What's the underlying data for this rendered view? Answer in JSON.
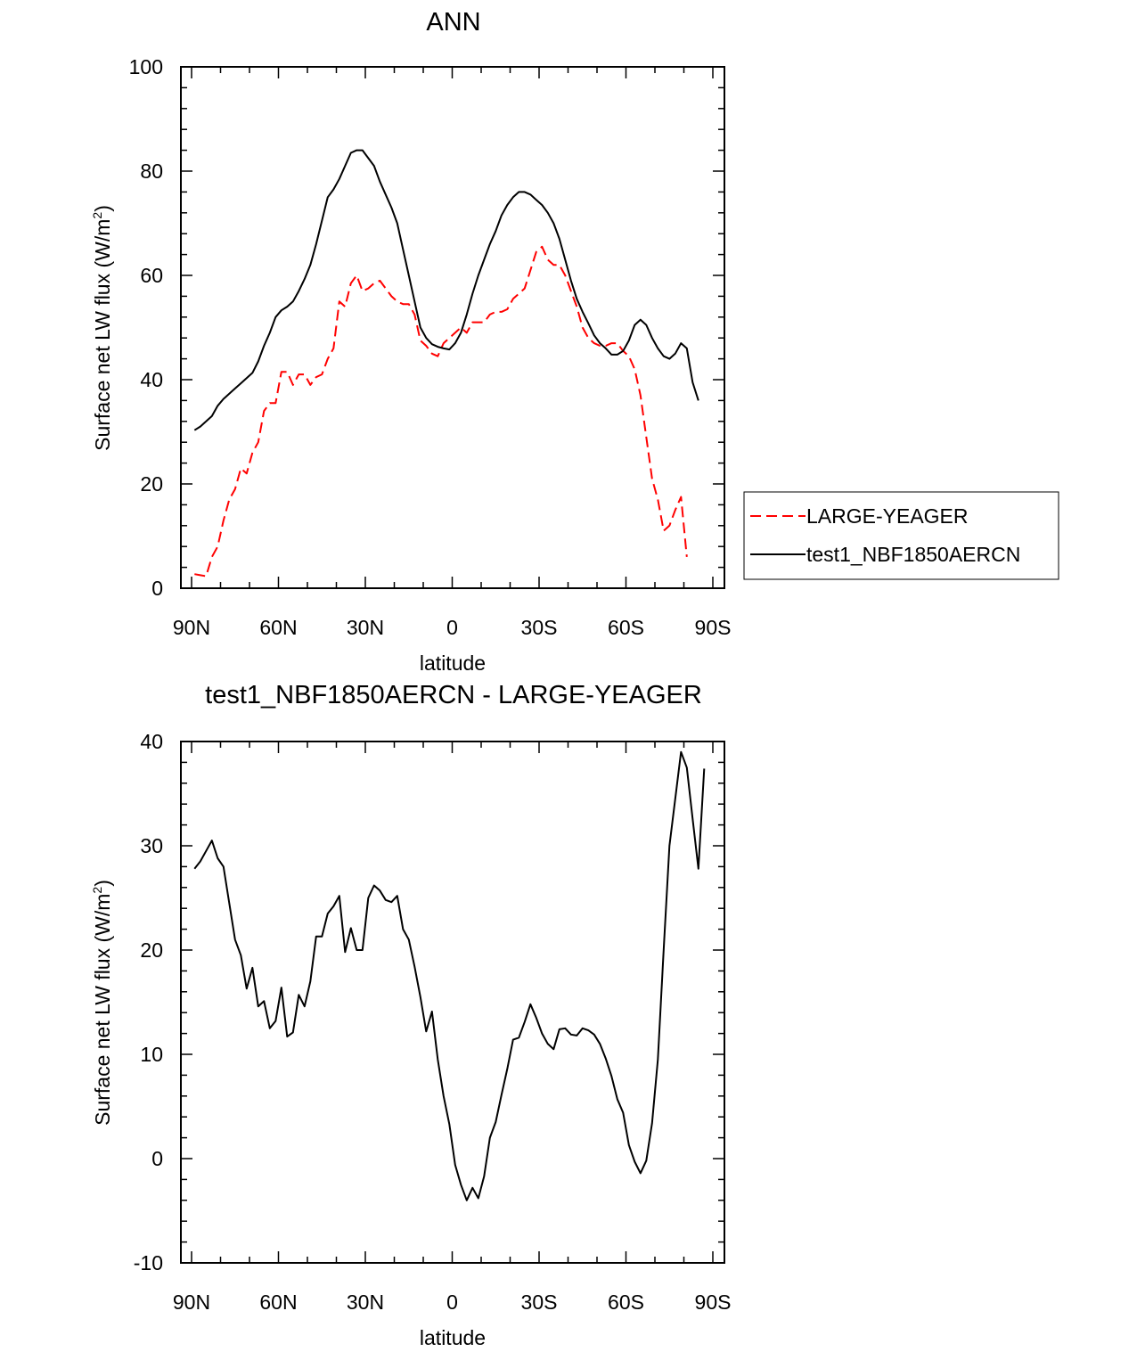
{
  "chart_data": [
    {
      "type": "line",
      "title": "ANN",
      "xlabel": "latitude",
      "ylabel": "Surface net LW flux (W/m",
      "ylabel_sup": "2",
      "ylabel_end": ")",
      "xlim": [
        90,
        -90
      ],
      "ylim": [
        0,
        100
      ],
      "x_ticks": [
        {
          "value": 90,
          "label": "90N"
        },
        {
          "value": 60,
          "label": "60N"
        },
        {
          "value": 30,
          "label": "30N"
        },
        {
          "value": 0,
          "label": "0"
        },
        {
          "value": -30,
          "label": "30S"
        },
        {
          "value": -60,
          "label": "60S"
        },
        {
          "value": -90,
          "label": "90S"
        }
      ],
      "y_ticks": [
        0,
        20,
        40,
        60,
        80,
        100
      ],
      "legend": "right",
      "series": [
        {
          "name": "LARGE-YEAGER",
          "color": "#ff0000",
          "dash": "dashed",
          "points": [
            [
              89,
              2.7
            ],
            [
              87,
              2.5
            ],
            [
              85,
              2.3
            ],
            [
              83,
              6
            ],
            [
              81,
              8
            ],
            [
              79,
              13
            ],
            [
              77,
              17
            ],
            [
              75,
              19
            ],
            [
              73,
              23
            ],
            [
              71,
              22
            ],
            [
              69,
              26
            ],
            [
              67,
              28
            ],
            [
              65,
              34
            ],
            [
              63,
              35.5
            ],
            [
              61,
              35.5
            ],
            [
              59,
              41.5
            ],
            [
              57,
              41.5
            ],
            [
              55,
              39
            ],
            [
              53,
              41
            ],
            [
              51,
              41
            ],
            [
              49,
              39
            ],
            [
              47,
              40.5
            ],
            [
              45,
              41
            ],
            [
              43,
              44
            ],
            [
              41,
              46
            ],
            [
              39,
              55
            ],
            [
              37,
              54
            ],
            [
              35,
              58.5
            ],
            [
              33,
              60
            ],
            [
              31,
              57
            ],
            [
              29,
              57.5
            ],
            [
              27,
              58.5
            ],
            [
              25,
              59
            ],
            [
              23,
              57.5
            ],
            [
              21,
              56
            ],
            [
              19,
              55
            ],
            [
              17,
              54.5
            ],
            [
              15,
              54.5
            ],
            [
              13,
              52.5
            ],
            [
              11,
              47.5
            ],
            [
              9,
              46.5
            ],
            [
              7,
              45
            ],
            [
              5,
              44.5
            ],
            [
              3,
              47
            ],
            [
              1,
              48
            ],
            [
              -1,
              49
            ],
            [
              -3,
              50
            ],
            [
              -5,
              49
            ],
            [
              -7,
              51
            ],
            [
              -9,
              51
            ],
            [
              -11,
              51
            ],
            [
              -13,
              52.5
            ],
            [
              -15,
              53
            ],
            [
              -17,
              53
            ],
            [
              -19,
              53.5
            ],
            [
              -21,
              55.5
            ],
            [
              -23,
              56.5
            ],
            [
              -25,
              57.5
            ],
            [
              -27,
              61
            ],
            [
              -29,
              64.5
            ],
            [
              -31,
              65.5
            ],
            [
              -33,
              63
            ],
            [
              -35,
              62
            ],
            [
              -37,
              62
            ],
            [
              -39,
              60
            ],
            [
              -41,
              57
            ],
            [
              -43,
              54
            ],
            [
              -45,
              50
            ],
            [
              -47,
              48
            ],
            [
              -49,
              47
            ],
            [
              -51,
              46.5
            ],
            [
              -53,
              46.5
            ],
            [
              -55,
              47
            ],
            [
              -57,
              47
            ],
            [
              -59,
              45.5
            ],
            [
              -61,
              44.5
            ],
            [
              -63,
              42
            ],
            [
              -65,
              37
            ],
            [
              -67,
              29
            ],
            [
              -69,
              21
            ],
            [
              -71,
              17
            ],
            [
              -73,
              11
            ],
            [
              -75,
              12
            ],
            [
              -77,
              15
            ],
            [
              -79,
              17.5
            ],
            [
              -81,
              6
            ]
          ]
        },
        {
          "name": "test1_NBF1850AERCN",
          "color": "#000000",
          "dash": "solid",
          "points": [
            [
              89,
              30.3
            ],
            [
              87,
              31
            ],
            [
              85,
              32
            ],
            [
              83,
              33
            ],
            [
              81,
              35
            ],
            [
              79,
              36.3
            ],
            [
              77,
              37.3
            ],
            [
              75,
              38.3
            ],
            [
              73,
              39.3
            ],
            [
              71,
              40.3
            ],
            [
              69,
              41.3
            ],
            [
              67,
              43.5
            ],
            [
              65,
              46.5
            ],
            [
              63,
              49
            ],
            [
              61,
              52
            ],
            [
              59,
              53.3
            ],
            [
              57,
              54
            ],
            [
              55,
              55
            ],
            [
              53,
              57
            ],
            [
              51,
              59.3
            ],
            [
              49,
              62
            ],
            [
              47,
              66
            ],
            [
              45,
              70.5
            ],
            [
              43,
              75
            ],
            [
              41,
              76.5
            ],
            [
              39,
              78.5
            ],
            [
              37,
              81
            ],
            [
              35,
              83.5
            ],
            [
              33,
              84
            ],
            [
              31,
              84
            ],
            [
              29,
              82.5
            ],
            [
              27,
              81
            ],
            [
              25,
              78
            ],
            [
              23,
              75.5
            ],
            [
              21,
              73
            ],
            [
              19,
              70
            ],
            [
              17,
              65
            ],
            [
              15,
              60
            ],
            [
              13,
              55
            ],
            [
              11,
              50
            ],
            [
              9,
              48
            ],
            [
              7,
              46.8
            ],
            [
              5,
              46.3
            ],
            [
              3,
              46
            ],
            [
              1,
              45.8
            ],
            [
              -1,
              47
            ],
            [
              -3,
              49
            ],
            [
              -5,
              52.5
            ],
            [
              -7,
              56.5
            ],
            [
              -9,
              60
            ],
            [
              -11,
              63
            ],
            [
              -13,
              66
            ],
            [
              -15,
              68.5
            ],
            [
              -17,
              71.5
            ],
            [
              -19,
              73.5
            ],
            [
              -21,
              75
            ],
            [
              -23,
              76
            ],
            [
              -25,
              76
            ],
            [
              -27,
              75.5
            ],
            [
              -29,
              74.5
            ],
            [
              -31,
              73.5
            ],
            [
              -33,
              72
            ],
            [
              -35,
              70
            ],
            [
              -37,
              67
            ],
            [
              -39,
              63
            ],
            [
              -41,
              59
            ],
            [
              -43,
              55.5
            ],
            [
              -45,
              53
            ],
            [
              -47,
              50.8
            ],
            [
              -49,
              48.5
            ],
            [
              -51,
              47
            ],
            [
              -53,
              46
            ],
            [
              -55,
              44.8
            ],
            [
              -57,
              44.8
            ],
            [
              -59,
              45.5
            ],
            [
              -61,
              47.5
            ],
            [
              -63,
              50.5
            ],
            [
              -65,
              51.5
            ],
            [
              -67,
              50.5
            ],
            [
              -69,
              48
            ],
            [
              -71,
              46
            ],
            [
              -73,
              44.5
            ],
            [
              -75,
              44
            ],
            [
              -77,
              45
            ],
            [
              -79,
              47
            ],
            [
              -81,
              46
            ],
            [
              -83,
              39.5
            ],
            [
              -85,
              36
            ]
          ]
        }
      ]
    },
    {
      "type": "line",
      "title": "test1_NBF1850AERCN - LARGE-YEAGER",
      "xlabel": "latitude",
      "ylabel": "Surface net LW flux (W/m",
      "ylabel_sup": "2",
      "ylabel_end": ")",
      "xlim": [
        90,
        -90
      ],
      "ylim": [
        -10,
        40
      ],
      "x_ticks": [
        {
          "value": 90,
          "label": "90N"
        },
        {
          "value": 60,
          "label": "60N"
        },
        {
          "value": 30,
          "label": "30N"
        },
        {
          "value": 0,
          "label": "0"
        },
        {
          "value": -30,
          "label": "30S"
        },
        {
          "value": -60,
          "label": "60S"
        },
        {
          "value": -90,
          "label": "90S"
        }
      ],
      "y_ticks": [
        -10,
        0,
        10,
        20,
        30,
        40
      ],
      "series": [
        {
          "color": "#000000",
          "dash": "solid",
          "points": [
            [
              89,
              27.8
            ],
            [
              87,
              28.5
            ],
            [
              85,
              29.5
            ],
            [
              83,
              30.5
            ],
            [
              81,
              28.8
            ],
            [
              79,
              28
            ],
            [
              77,
              24.5
            ],
            [
              75,
              21
            ],
            [
              73,
              19.5
            ],
            [
              71,
              16.3
            ],
            [
              69,
              18.3
            ],
            [
              67,
              14.6
            ],
            [
              65,
              15.1
            ],
            [
              63,
              12.5
            ],
            [
              61,
              13.2
            ],
            [
              59,
              16.4
            ],
            [
              57,
              11.7
            ],
            [
              55,
              12.1
            ],
            [
              53,
              15.7
            ],
            [
              51,
              14.6
            ],
            [
              49,
              17
            ],
            [
              47,
              21.3
            ],
            [
              45,
              21.3
            ],
            [
              43,
              23.5
            ],
            [
              41,
              24.2
            ],
            [
              39,
              25.2
            ],
            [
              37,
              19.8
            ],
            [
              35,
              22.1
            ],
            [
              33,
              20
            ],
            [
              31,
              20
            ],
            [
              29,
              25
            ],
            [
              27,
              26.2
            ],
            [
              25,
              25.7
            ],
            [
              23,
              24.8
            ],
            [
              21,
              24.6
            ],
            [
              19,
              25.2
            ],
            [
              17,
              22
            ],
            [
              15,
              21
            ],
            [
              13,
              18.4
            ],
            [
              11,
              15.5
            ],
            [
              9,
              12.2
            ],
            [
              7,
              14.1
            ],
            [
              5,
              9.5
            ],
            [
              3,
              6
            ],
            [
              1,
              3.3
            ],
            [
              -1,
              -0.6
            ],
            [
              -3,
              -2.5
            ],
            [
              -5,
              -4
            ],
            [
              -7,
              -2.8
            ],
            [
              -9,
              -3.8
            ],
            [
              -11,
              -1.7
            ],
            [
              -13,
              2
            ],
            [
              -15,
              3.5
            ],
            [
              -17,
              6.1
            ],
            [
              -19,
              8.6
            ],
            [
              -21,
              11.4
            ],
            [
              -23,
              11.6
            ],
            [
              -25,
              13.1
            ],
            [
              -27,
              14.8
            ],
            [
              -29,
              13.5
            ],
            [
              -31,
              12
            ],
            [
              -33,
              11
            ],
            [
              -35,
              10.5
            ],
            [
              -37,
              12.4
            ],
            [
              -39,
              12.5
            ],
            [
              -41,
              11.9
            ],
            [
              -43,
              11.8
            ],
            [
              -45,
              12.5
            ],
            [
              -47,
              12.3
            ],
            [
              -49,
              11.9
            ],
            [
              -51,
              11
            ],
            [
              -53,
              9.6
            ],
            [
              -55,
              7.9
            ],
            [
              -57,
              5.7
            ],
            [
              -59,
              4.4
            ],
            [
              -61,
              1.3
            ],
            [
              -63,
              -0.3
            ],
            [
              -65,
              -1.4
            ],
            [
              -67,
              -0.2
            ],
            [
              -69,
              3.4
            ],
            [
              -71,
              9.5
            ],
            [
              -73,
              20
            ],
            [
              -75,
              30
            ],
            [
              -77,
              34.5
            ],
            [
              -79,
              39
            ],
            [
              -81,
              37.5
            ],
            [
              -83,
              32.6
            ],
            [
              -85,
              27.8
            ],
            [
              -87,
              37.4
            ]
          ]
        }
      ]
    }
  ]
}
